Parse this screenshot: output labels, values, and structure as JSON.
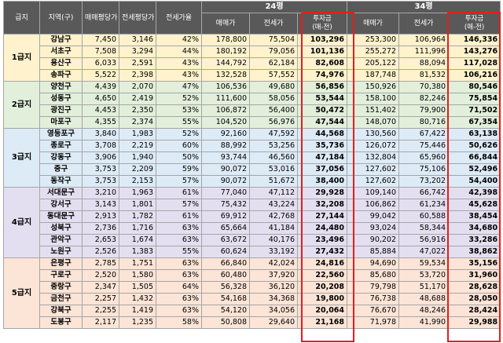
{
  "headers": {
    "grade": "급지",
    "region": "지역(구)",
    "sale_per_pyeong": "매매평당가",
    "jeonse_per_pyeong": "전세평당가",
    "jeonse_ratio": "전세가율",
    "group_24": "24평",
    "group_34": "34평",
    "sale": "매매가",
    "jeonse": "전세가",
    "investment_line1": "투자금",
    "investment_line2": "(매-전)"
  },
  "colors": {
    "header_bg": "#595959",
    "highlight_border": "#e81c1c",
    "grade1_bg": "#fff2cc",
    "grade2_bg": "#e2efda",
    "grade3_bg": "#ddebf7",
    "grade4_bg": "#e4dff0",
    "grade5_bg": "#fce4d6"
  },
  "grades": [
    {
      "label": "1급지",
      "rows": [
        {
          "region": "강남구",
          "sale_pp": "7,450",
          "jeonse_pp": "3,146",
          "ratio": "42%",
          "s24": "178,800",
          "j24": "75,504",
          "i24": "103,296",
          "s34": "253,300",
          "j34": "106,964",
          "i34": "146,336"
        },
        {
          "region": "서초구",
          "sale_pp": "7,508",
          "jeonse_pp": "3,294",
          "ratio": "44%",
          "s24": "180,192",
          "j24": "79,056",
          "i24": "101,136",
          "s34": "255,272",
          "j34": "111,996",
          "i34": "143,276"
        },
        {
          "region": "용산구",
          "sale_pp": "6,033",
          "jeonse_pp": "2,591",
          "ratio": "43%",
          "s24": "144,792",
          "j24": "62,184",
          "i24": "82,608",
          "s34": "205,122",
          "j34": "88,094",
          "i34": "117,028"
        },
        {
          "region": "송파구",
          "sale_pp": "5,522",
          "jeonse_pp": "2,398",
          "ratio": "43%",
          "s24": "132,528",
          "j24": "57,552",
          "i24": "74,976",
          "s34": "187,748",
          "j34": "81,532",
          "i34": "106,216"
        }
      ]
    },
    {
      "label": "2급지",
      "rows": [
        {
          "region": "양천구",
          "sale_pp": "4,439",
          "jeonse_pp": "2,070",
          "ratio": "47%",
          "s24": "106,536",
          "j24": "49,680",
          "i24": "56,856",
          "s34": "150,926",
          "j34": "70,380",
          "i34": "80,546"
        },
        {
          "region": "성동구",
          "sale_pp": "4,650",
          "jeonse_pp": "2,419",
          "ratio": "52%",
          "s24": "111,600",
          "j24": "58,056",
          "i24": "53,544",
          "s34": "158,100",
          "j34": "82,246",
          "i34": "75,854"
        },
        {
          "region": "광진구",
          "sale_pp": "4,453",
          "jeonse_pp": "2,350",
          "ratio": "53%",
          "s24": "106,872",
          "j24": "56,400",
          "i24": "50,472",
          "s34": "151,402",
          "j34": "79,900",
          "i34": "71,502"
        },
        {
          "region": "마포구",
          "sale_pp": "4,355",
          "jeonse_pp": "2,374",
          "ratio": "55%",
          "s24": "104,520",
          "j24": "56,976",
          "i24": "47,544",
          "s34": "148,070",
          "j34": "80,716",
          "i34": "67,354"
        }
      ]
    },
    {
      "label": "3급지",
      "rows": [
        {
          "region": "영등포구",
          "sale_pp": "3,840",
          "jeonse_pp": "1,983",
          "ratio": "52%",
          "s24": "92,160",
          "j24": "47,592",
          "i24": "44,568",
          "s34": "130,560",
          "j34": "67,422",
          "i34": "63,138"
        },
        {
          "region": "종로구",
          "sale_pp": "3,708",
          "jeonse_pp": "2,219",
          "ratio": "60%",
          "s24": "88,992",
          "j24": "53,256",
          "i24": "35,736",
          "s34": "126,072",
          "j34": "75,446",
          "i34": "50,626"
        },
        {
          "region": "강동구",
          "sale_pp": "3,906",
          "jeonse_pp": "1,940",
          "ratio": "50%",
          "s24": "93,744",
          "j24": "46,560",
          "i24": "47,184",
          "s34": "132,804",
          "j34": "65,960",
          "i34": "66,844"
        },
        {
          "region": "중구",
          "sale_pp": "3,753",
          "jeonse_pp": "2,209",
          "ratio": "59%",
          "s24": "90,072",
          "j24": "53,016",
          "i24": "37,056",
          "s34": "127,602",
          "j34": "75,106",
          "i34": "52,496"
        },
        {
          "region": "동작구",
          "sale_pp": "3,753",
          "jeonse_pp": "2,153",
          "ratio": "57%",
          "s24": "90,072",
          "j24": "51,672",
          "i24": "38,400",
          "s34": "127,602",
          "j34": "73,202",
          "i34": "54,400"
        }
      ]
    },
    {
      "label": "4급지",
      "rows": [
        {
          "region": "서대문구",
          "sale_pp": "3,210",
          "jeonse_pp": "1,963",
          "ratio": "61%",
          "s24": "77,040",
          "j24": "47,112",
          "i24": "29,928",
          "s34": "109,140",
          "j34": "66,742",
          "i34": "42,398"
        },
        {
          "region": "강서구",
          "sale_pp": "3,143",
          "jeonse_pp": "1,801",
          "ratio": "57%",
          "s24": "75,432",
          "j24": "43,224",
          "i24": "32,208",
          "s34": "106,862",
          "j34": "61,234",
          "i34": "45,628"
        },
        {
          "region": "동대문구",
          "sale_pp": "2,913",
          "jeonse_pp": "1,782",
          "ratio": "61%",
          "s24": "69,912",
          "j24": "42,768",
          "i24": "27,144",
          "s34": "99,042",
          "j34": "60,588",
          "i34": "38,454"
        },
        {
          "region": "성북구",
          "sale_pp": "2,736",
          "jeonse_pp": "1,716",
          "ratio": "63%",
          "s24": "65,664",
          "j24": "41,184",
          "i24": "24,480",
          "s34": "93,024",
          "j34": "58,344",
          "i34": "34,680"
        },
        {
          "region": "관악구",
          "sale_pp": "2,653",
          "jeonse_pp": "1,674",
          "ratio": "63%",
          "s24": "63,672",
          "j24": "40,176",
          "i24": "23,496",
          "s34": "90,202",
          "j34": "56,916",
          "i34": "33,286"
        },
        {
          "region": "노원구",
          "sale_pp": "2,526",
          "jeonse_pp": "1,383",
          "ratio": "55%",
          "s24": "60,624",
          "j24": "33,192",
          "i24": "27,432",
          "s34": "85,884",
          "j34": "47,022",
          "i34": "38,862"
        }
      ]
    },
    {
      "label": "5급지",
      "rows": [
        {
          "region": "은평구",
          "sale_pp": "2,785",
          "jeonse_pp": "1,751",
          "ratio": "63%",
          "s24": "66,840",
          "j24": "42,024",
          "i24": "24,816",
          "s34": "94,690",
          "j34": "59,534",
          "i34": "35,156"
        },
        {
          "region": "구로구",
          "sale_pp": "2,520",
          "jeonse_pp": "1,580",
          "ratio": "63%",
          "s24": "60,480",
          "j24": "37,920",
          "i24": "22,560",
          "s34": "85,680",
          "j34": "53,720",
          "i34": "31,960"
        },
        {
          "region": "중랑구",
          "sale_pp": "2,347",
          "jeonse_pp": "1,505",
          "ratio": "64%",
          "s24": "56,328",
          "j24": "36,120",
          "i24": "20,208",
          "s34": "79,798",
          "j34": "51,170",
          "i34": "28,628"
        },
        {
          "region": "금천구",
          "sale_pp": "2,257",
          "jeonse_pp": "1,432",
          "ratio": "63%",
          "s24": "54,168",
          "j24": "34,368",
          "i24": "19,800",
          "s34": "76,738",
          "j34": "48,688",
          "i34": "28,050"
        },
        {
          "region": "강북구",
          "sale_pp": "2,255",
          "jeonse_pp": "1,419",
          "ratio": "63%",
          "s24": "54,120",
          "j24": "34,056",
          "i24": "20,064",
          "s34": "76,670",
          "j34": "48,246",
          "i34": "28,424"
        },
        {
          "region": "도봉구",
          "sale_pp": "2,117",
          "jeonse_pp": "1,235",
          "ratio": "58%",
          "s24": "50,808",
          "j24": "29,640",
          "i24": "21,168",
          "s34": "71,978",
          "j34": "41,990",
          "i34": "29,988"
        }
      ]
    }
  ]
}
